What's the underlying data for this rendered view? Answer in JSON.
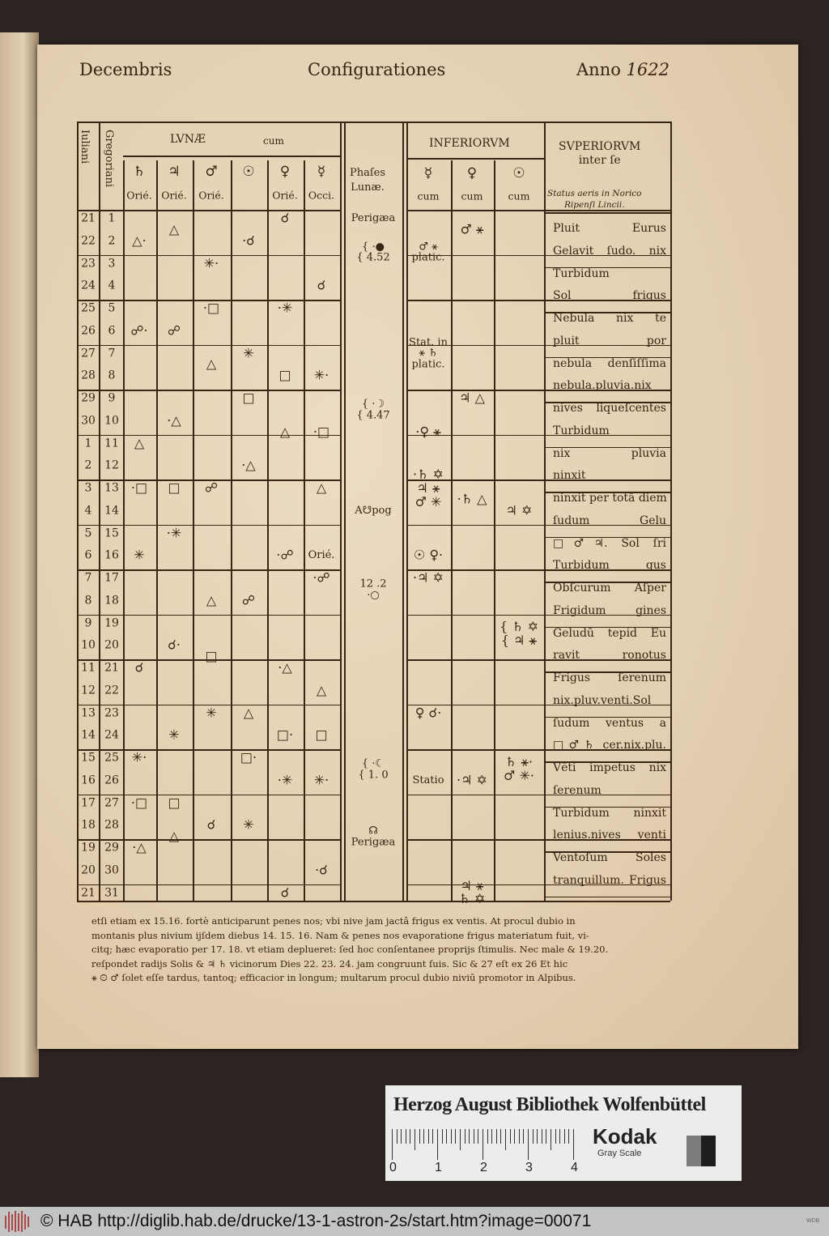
{
  "header": {
    "month": "Decembris",
    "title": "Configurationes",
    "year_label": "Anno",
    "year": "1622"
  },
  "columns": {
    "julian": "Iuliani",
    "gregorian": "Gregoriani",
    "lunae_group": "LVNÆ",
    "lunae_cum": "cum",
    "lunae_planets": [
      {
        "symbol": "♄",
        "sub": "Orié."
      },
      {
        "symbol": "♃",
        "sub": "Orié."
      },
      {
        "symbol": "♂",
        "sub": "Orié."
      },
      {
        "symbol": "☉",
        "sub": ""
      },
      {
        "symbol": "♀",
        "sub": "Orié."
      },
      {
        "symbol": "☿",
        "sub": "Occi."
      }
    ],
    "phases": "Phaſes\nLunæ.",
    "inferiorum_group": "INFERIORVM",
    "inferiorum_planets": [
      {
        "symbol": "☿",
        "sub": "cum"
      },
      {
        "symbol": "♀",
        "sub": "cum"
      },
      {
        "symbol": "☉",
        "sub": "cum"
      }
    ],
    "superiorum": "SVPERIORVM\ninter ſe",
    "status_aeris": "Status aeris in Norico\nRipenſi Lincii."
  },
  "julian_days": [
    "21",
    "22",
    "23",
    "24",
    "25",
    "26",
    "27",
    "28",
    "29",
    "30",
    "1",
    "2",
    "3",
    "4",
    "5",
    "6",
    "7",
    "8",
    "9",
    "10",
    "11",
    "12",
    "13",
    "14",
    "15",
    "16",
    "17",
    "18",
    "19",
    "20",
    "21"
  ],
  "gregorian_days": [
    "1",
    "2",
    "3",
    "4",
    "5",
    "6",
    "7",
    "8",
    "9",
    "10",
    "11",
    "12",
    "13",
    "14",
    "15",
    "16",
    "17",
    "18",
    "19",
    "20",
    "21",
    "22",
    "23",
    "24",
    "25",
    "26",
    "27",
    "28",
    "29",
    "30",
    "31"
  ],
  "cells": [
    {
      "col": "sat",
      "day": 2,
      "text": "△·"
    },
    {
      "col": "sat",
      "day": 6,
      "text": "☍·"
    },
    {
      "col": "sat",
      "day": 11,
      "text": "△"
    },
    {
      "col": "sat",
      "day": 13,
      "text": "·□"
    },
    {
      "col": "sat",
      "day": 16,
      "text": "✳"
    },
    {
      "col": "sat",
      "day": 21,
      "text": "☌"
    },
    {
      "col": "sat",
      "day": 25,
      "text": "✳·"
    },
    {
      "col": "sat",
      "day": 27,
      "text": "·□"
    },
    {
      "col": "sat",
      "day": 29,
      "text": "·△"
    },
    {
      "col": "jup",
      "day": 1.5,
      "text": "△"
    },
    {
      "col": "jup",
      "day": 6,
      "text": "☍"
    },
    {
      "col": "jup",
      "day": 10,
      "text": "·△"
    },
    {
      "col": "jup",
      "day": 13,
      "text": "□"
    },
    {
      "col": "jup",
      "day": 15,
      "text": "·✳"
    },
    {
      "col": "jup",
      "day": 20,
      "text": "☌·"
    },
    {
      "col": "jup",
      "day": 24,
      "text": "✳"
    },
    {
      "col": "jup",
      "day": 27,
      "text": "□"
    },
    {
      "col": "jup",
      "day": 28.5,
      "text": "△"
    },
    {
      "col": "mar",
      "day": 3,
      "text": "✳·"
    },
    {
      "col": "mar",
      "day": 5,
      "text": "·□"
    },
    {
      "col": "mar",
      "day": 7.5,
      "text": "△"
    },
    {
      "col": "mar",
      "day": 13,
      "text": "☍"
    },
    {
      "col": "mar",
      "day": 18,
      "text": "△"
    },
    {
      "col": "mar",
      "day": 20.5,
      "text": "□"
    },
    {
      "col": "mar",
      "day": 23,
      "text": "✳"
    },
    {
      "col": "mar",
      "day": 28,
      "text": "☌"
    },
    {
      "col": "sun",
      "day": 2,
      "text": "·☌"
    },
    {
      "col": "sun",
      "day": 7,
      "text": "✳"
    },
    {
      "col": "sun",
      "day": 9,
      "text": "□"
    },
    {
      "col": "sun",
      "day": 12,
      "text": "·△"
    },
    {
      "col": "sun",
      "day": 18,
      "text": "☍"
    },
    {
      "col": "sun",
      "day": 23,
      "text": "△"
    },
    {
      "col": "sun",
      "day": 25,
      "text": "□·"
    },
    {
      "col": "sun",
      "day": 28,
      "text": "✳"
    },
    {
      "col": "ven",
      "day": 1,
      "text": "☌"
    },
    {
      "col": "ven",
      "day": 5,
      "text": "·✳"
    },
    {
      "col": "ven",
      "day": 8,
      "text": "□"
    },
    {
      "col": "ven",
      "day": 10.5,
      "text": "△"
    },
    {
      "col": "ven",
      "day": 16,
      "text": "·☍"
    },
    {
      "col": "ven",
      "day": 21,
      "text": "·△"
    },
    {
      "col": "ven",
      "day": 24,
      "text": "□·"
    },
    {
      "col": "ven",
      "day": 26,
      "text": "·✳"
    },
    {
      "col": "ven",
      "day": 31,
      "text": "☌"
    },
    {
      "col": "mer",
      "day": 4,
      "text": "☌"
    },
    {
      "col": "mer",
      "day": 8,
      "text": "✳·"
    },
    {
      "col": "mer",
      "day": 10.5,
      "text": "·□"
    },
    {
      "col": "mer",
      "day": 13,
      "text": "△"
    },
    {
      "col": "mer",
      "day": 16,
      "text": "Orié."
    },
    {
      "col": "mer",
      "day": 17,
      "text": "·☍"
    },
    {
      "col": "mer",
      "day": 22,
      "text": "△"
    },
    {
      "col": "mer",
      "day": 24,
      "text": "□"
    },
    {
      "col": "mer",
      "day": 26,
      "text": "✳·"
    },
    {
      "col": "mer",
      "day": 30,
      "text": "·☌"
    },
    {
      "col": "pha",
      "day": 1,
      "text": "Perigæa"
    },
    {
      "col": "pha",
      "day": 2.5,
      "text": "{ ·●\n{ 4.52"
    },
    {
      "col": "pha",
      "day": 9.5,
      "text": "{ ·☽\n{ 4.47"
    },
    {
      "col": "pha",
      "day": 14,
      "text": "A☋pog"
    },
    {
      "col": "pha",
      "day": 17.5,
      "text": "12 .2\n·○"
    },
    {
      "col": "pha",
      "day": 25.5,
      "text": "{ ·☾\n{ 1. 0"
    },
    {
      "col": "pha",
      "day": 28.5,
      "text": "☊\nPerigæa"
    },
    {
      "col": "i1",
      "day": 2.5,
      "text": "♂ ⚹\nplatic."
    },
    {
      "col": "i1",
      "day": 7,
      "text": "Stat. in\n⚹ ♄\nplatic."
    },
    {
      "col": "i1",
      "day": 10.5,
      "text": "·♀ ⚹"
    },
    {
      "col": "i1",
      "day": 13,
      "text": "·♄ ✡\n♃ ⚹\n♂ ✳"
    },
    {
      "col": "i1",
      "day": 16,
      "text": "☉ ♀·"
    },
    {
      "col": "i1",
      "day": 17,
      "text": "·♃ ✡"
    },
    {
      "col": "i1",
      "day": 23,
      "text": "♀ ☌·"
    },
    {
      "col": "i1",
      "day": 26,
      "text": "Statio"
    },
    {
      "col": "i2",
      "day": 1.5,
      "text": "♂ ⚹"
    },
    {
      "col": "i2",
      "day": 9,
      "text": "♃ △"
    },
    {
      "col": "i2",
      "day": 13.5,
      "text": "·♄ △"
    },
    {
      "col": "i2",
      "day": 26,
      "text": "·♃ ✡"
    },
    {
      "col": "i2",
      "day": 31,
      "text": "♃ ⚹\n♄ ✡"
    },
    {
      "col": "i3",
      "day": 14,
      "text": "♃ ✡"
    },
    {
      "col": "i3",
      "day": 19.5,
      "text": "{ ♄ ✡\n{ ♃ ⚹"
    },
    {
      "col": "i3",
      "day": 25.5,
      "text": "♄ ⚹·\n♂ ✳·"
    }
  ],
  "weather": [
    "Pluit Eurus",
    "Gelavit ſudo. nix",
    "Turbidum",
    "Sol frigus",
    "Nebula nix te",
    "pluit por",
    "nebula denſiſſima",
    "nebula.pluvia.nix",
    "nives liqueſcentes",
    "Turbidum",
    "nix pluvia",
    "ninxit",
    "ninxit per totā diem",
    "ſudum Gelu",
    "□♂♃. Sol ſri",
    "Turbidum gus",
    "Obſcurum Aſper",
    "Frigidum gines",
    "Geludū tepid Eu",
    "ravit ronotus",
    "Frigus ſerenum",
    "nix.pluv.venti.Sol",
    "ſudum ventus a",
    "□♂♄ cer.nix.plu.",
    "Vēti impetus nix",
    "ſerenum",
    "Turbidum ninxit",
    "lenius.nives venti",
    "Ventoſum Soles",
    "tranquillum. Frigus"
  ],
  "footnote": [
    "etſi etiam ex 15.16. fortè anticiparunt penes nos; vbi nive jam jactâ frigus ex ventis.  At procul dubio in",
    "montanis plus nivium ijſdem diebus 14. 15. 16.  Nam & penes nos evaporatione frigus materiatum fuit, vi-",
    "citq; hæc evaporatio per 17. 18. vt etiam deplueret: ſed hoc conſentanee proprijs ſtimulis.  Nec male & 19.20.",
    "reſpondet radijs Solis & ♃ ♄ vicinorum  Dies 22. 23. 24. jam congruunt ſuis.  Sic & 27 eſt ex 26  Et hic",
    "⚹ ☉ ♂ ſolet eſſe tardus, tantoq; efficacior in longum; multarum procul dubio niviū promotor in Alpibus."
  ],
  "library_card": {
    "title": "Herzog August Bibliothek Wolfenbüttel",
    "scale_labels": [
      "0",
      "1",
      "2",
      "3",
      "4"
    ],
    "brand": "Kodak",
    "brand_sub": "Gray Scale"
  },
  "footer_bar": {
    "text": "© HAB http://diglib.hab.de/drucke/13-1-astron-2s/start.htm?image=00071",
    "code": "WDB"
  }
}
